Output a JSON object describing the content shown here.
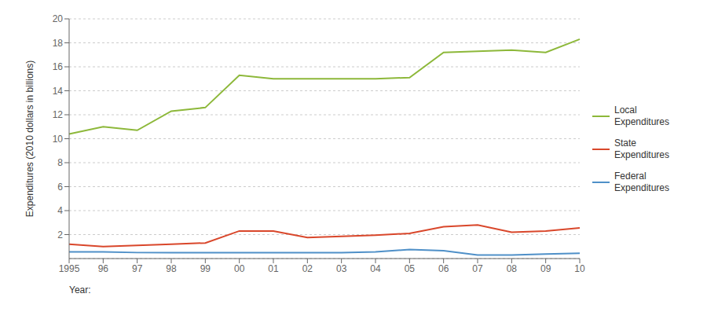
{
  "chart_data": {
    "type": "line",
    "categories": [
      "1995",
      "96",
      "97",
      "98",
      "99",
      "00",
      "01",
      "02",
      "03",
      "04",
      "05",
      "06",
      "07",
      "08",
      "09",
      "10"
    ],
    "series": [
      {
        "name": "Local\nExpenditures",
        "color": "#8db83a",
        "values": [
          10.4,
          11.0,
          10.7,
          12.3,
          12.6,
          15.3,
          15.0,
          15.0,
          15.0,
          15.0,
          15.1,
          17.2,
          17.3,
          17.4,
          17.2,
          18.3
        ]
      },
      {
        "name": "State\nExpenditures",
        "color": "#d9472b",
        "values": [
          1.2,
          1.0,
          1.1,
          1.2,
          1.3,
          2.3,
          2.3,
          1.75,
          1.85,
          1.95,
          2.1,
          2.65,
          2.8,
          2.2,
          2.3,
          2.55
        ]
      },
      {
        "name": "Federal\nExpenditures",
        "color": "#4f90c8",
        "values": [
          0.55,
          0.55,
          0.5,
          0.5,
          0.5,
          0.5,
          0.5,
          0.5,
          0.5,
          0.55,
          0.75,
          0.65,
          0.3,
          0.3,
          0.38,
          0.45
        ]
      }
    ],
    "ylabel": "Expenditures (2010 dollars in billions)",
    "xlabel": "Year:",
    "ylim": [
      0,
      20
    ],
    "yticks": [
      2,
      4,
      6,
      8,
      10,
      12,
      14,
      16,
      18,
      20
    ],
    "grid": true,
    "legend": "right"
  }
}
